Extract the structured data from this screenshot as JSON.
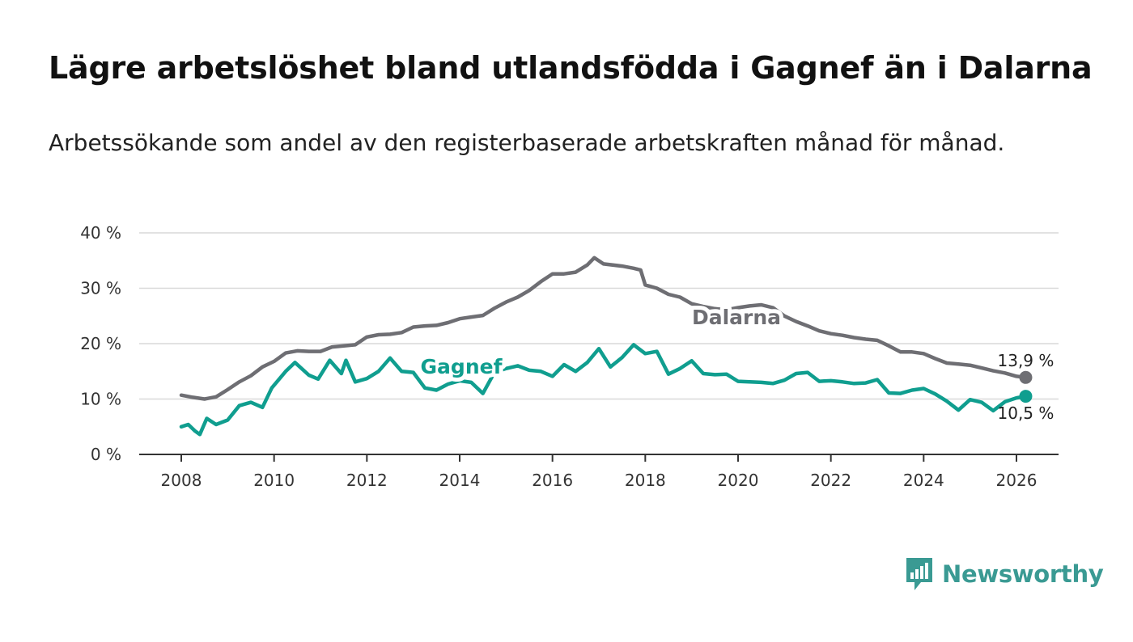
{
  "title": "Lägre arbetslöshet bland utlandsfödda i Gagnef än i Dalarna",
  "subtitle": "Arbetssökande som andel av den registerbaserade arbetskraften månad för månad.",
  "brand": {
    "name": "Newsworthy",
    "color": "#3a9a93"
  },
  "chart_data": {
    "type": "line",
    "title": "Lägre arbetslöshet bland utlandsfödda i Gagnef än i Dalarna",
    "xlabel": "",
    "ylabel": "",
    "xlim": [
      2007.1,
      2027.0
    ],
    "ylim": [
      0,
      40
    ],
    "x_ticks": [
      2008,
      2010,
      2012,
      2014,
      2016,
      2018,
      2020,
      2022,
      2024,
      2026
    ],
    "x_tick_labels": [
      "2008",
      "2010",
      "2012",
      "2014",
      "2016",
      "2018",
      "2020",
      "2022",
      "2024",
      "2026"
    ],
    "y_ticks": [
      0,
      10,
      20,
      30,
      40
    ],
    "y_tick_labels": [
      "0 %",
      "10 %",
      "20 %",
      "30 %",
      "40 %"
    ],
    "grid": true,
    "series": [
      {
        "name": "Dalarna",
        "color": "#6e6e73",
        "points": [
          [
            2008.0,
            10.7
          ],
          [
            2008.25,
            10.3
          ],
          [
            2008.5,
            10.0
          ],
          [
            2008.75,
            10.4
          ],
          [
            2009.0,
            11.7
          ],
          [
            2009.25,
            13.1
          ],
          [
            2009.5,
            14.2
          ],
          [
            2009.75,
            15.8
          ],
          [
            2010.0,
            16.8
          ],
          [
            2010.25,
            18.3
          ],
          [
            2010.5,
            18.7
          ],
          [
            2010.75,
            18.6
          ],
          [
            2011.0,
            18.6
          ],
          [
            2011.25,
            19.4
          ],
          [
            2011.5,
            19.6
          ],
          [
            2011.75,
            19.8
          ],
          [
            2012.0,
            21.2
          ],
          [
            2012.25,
            21.6
          ],
          [
            2012.5,
            21.7
          ],
          [
            2012.75,
            22.0
          ],
          [
            2013.0,
            23.0
          ],
          [
            2013.25,
            23.2
          ],
          [
            2013.5,
            23.3
          ],
          [
            2013.75,
            23.8
          ],
          [
            2014.0,
            24.5
          ],
          [
            2014.25,
            24.8
          ],
          [
            2014.5,
            25.1
          ],
          [
            2014.75,
            26.4
          ],
          [
            2015.0,
            27.5
          ],
          [
            2015.25,
            28.4
          ],
          [
            2015.5,
            29.6
          ],
          [
            2015.75,
            31.2
          ],
          [
            2016.0,
            32.6
          ],
          [
            2016.25,
            32.6
          ],
          [
            2016.5,
            32.9
          ],
          [
            2016.75,
            34.2
          ],
          [
            2016.9,
            35.5
          ],
          [
            2017.1,
            34.4
          ],
          [
            2017.5,
            34.0
          ],
          [
            2017.75,
            33.6
          ],
          [
            2017.9,
            33.3
          ],
          [
            2018.0,
            30.6
          ],
          [
            2018.25,
            30.0
          ],
          [
            2018.5,
            28.9
          ],
          [
            2018.75,
            28.4
          ],
          [
            2019.0,
            27.2
          ],
          [
            2019.25,
            26.7
          ],
          [
            2019.5,
            26.3
          ],
          [
            2019.75,
            26.1
          ],
          [
            2020.0,
            26.5
          ],
          [
            2020.25,
            26.8
          ],
          [
            2020.5,
            27.0
          ],
          [
            2020.75,
            26.5
          ],
          [
            2021.0,
            25.0
          ],
          [
            2021.25,
            24.0
          ],
          [
            2021.5,
            23.2
          ],
          [
            2021.75,
            22.3
          ],
          [
            2022.0,
            21.8
          ],
          [
            2022.25,
            21.5
          ],
          [
            2022.5,
            21.1
          ],
          [
            2022.75,
            20.8
          ],
          [
            2023.0,
            20.6
          ],
          [
            2023.25,
            19.6
          ],
          [
            2023.5,
            18.5
          ],
          [
            2023.75,
            18.5
          ],
          [
            2024.0,
            18.2
          ],
          [
            2024.25,
            17.3
          ],
          [
            2024.5,
            16.5
          ],
          [
            2024.75,
            16.3
          ],
          [
            2025.0,
            16.1
          ],
          [
            2025.25,
            15.6
          ],
          [
            2025.5,
            15.1
          ],
          [
            2025.75,
            14.7
          ],
          [
            2026.0,
            14.1
          ],
          [
            2026.2,
            13.9
          ]
        ],
        "end_label": "13,9 %",
        "end_value": 13.9
      },
      {
        "name": "Gagnef",
        "color": "#109e8f",
        "points": [
          [
            2008.0,
            5.0
          ],
          [
            2008.15,
            5.4
          ],
          [
            2008.3,
            4.2
          ],
          [
            2008.4,
            3.6
          ],
          [
            2008.55,
            6.5
          ],
          [
            2008.75,
            5.4
          ],
          [
            2009.0,
            6.2
          ],
          [
            2009.25,
            8.8
          ],
          [
            2009.5,
            9.4
          ],
          [
            2009.75,
            8.5
          ],
          [
            2009.95,
            12.0
          ],
          [
            2010.25,
            15.0
          ],
          [
            2010.45,
            16.6
          ],
          [
            2010.75,
            14.3
          ],
          [
            2010.95,
            13.6
          ],
          [
            2011.2,
            17.0
          ],
          [
            2011.45,
            14.6
          ],
          [
            2011.55,
            17.0
          ],
          [
            2011.75,
            13.1
          ],
          [
            2012.0,
            13.7
          ],
          [
            2012.25,
            15.0
          ],
          [
            2012.5,
            17.4
          ],
          [
            2012.75,
            15.0
          ],
          [
            2013.0,
            14.8
          ],
          [
            2013.25,
            12.0
          ],
          [
            2013.5,
            11.6
          ],
          [
            2013.75,
            12.7
          ],
          [
            2014.0,
            13.3
          ],
          [
            2014.25,
            13.0
          ],
          [
            2014.5,
            11.0
          ],
          [
            2014.75,
            14.8
          ],
          [
            2015.0,
            15.5
          ],
          [
            2015.25,
            16.0
          ],
          [
            2015.5,
            15.2
          ],
          [
            2015.75,
            15.0
          ],
          [
            2016.0,
            14.1
          ],
          [
            2016.25,
            16.2
          ],
          [
            2016.5,
            15.0
          ],
          [
            2016.75,
            16.6
          ],
          [
            2017.0,
            19.1
          ],
          [
            2017.25,
            15.8
          ],
          [
            2017.5,
            17.5
          ],
          [
            2017.75,
            19.8
          ],
          [
            2018.0,
            18.2
          ],
          [
            2018.25,
            18.6
          ],
          [
            2018.5,
            14.5
          ],
          [
            2018.75,
            15.5
          ],
          [
            2019.0,
            16.9
          ],
          [
            2019.25,
            14.6
          ],
          [
            2019.5,
            14.4
          ],
          [
            2019.75,
            14.5
          ],
          [
            2020.0,
            13.2
          ],
          [
            2020.25,
            13.1
          ],
          [
            2020.5,
            13.0
          ],
          [
            2020.75,
            12.8
          ],
          [
            2021.0,
            13.4
          ],
          [
            2021.25,
            14.6
          ],
          [
            2021.5,
            14.8
          ],
          [
            2021.75,
            13.2
          ],
          [
            2022.0,
            13.3
          ],
          [
            2022.25,
            13.1
          ],
          [
            2022.5,
            12.8
          ],
          [
            2022.75,
            12.9
          ],
          [
            2023.0,
            13.5
          ],
          [
            2023.25,
            11.1
          ],
          [
            2023.5,
            11.0
          ],
          [
            2023.75,
            11.6
          ],
          [
            2024.0,
            11.9
          ],
          [
            2024.25,
            10.9
          ],
          [
            2024.5,
            9.6
          ],
          [
            2024.75,
            8.0
          ],
          [
            2025.0,
            9.9
          ],
          [
            2025.25,
            9.4
          ],
          [
            2025.5,
            7.9
          ],
          [
            2025.75,
            9.5
          ],
          [
            2026.0,
            10.2
          ],
          [
            2026.2,
            10.5
          ]
        ],
        "end_label": "10,5 %",
        "end_value": 10.5
      }
    ]
  }
}
